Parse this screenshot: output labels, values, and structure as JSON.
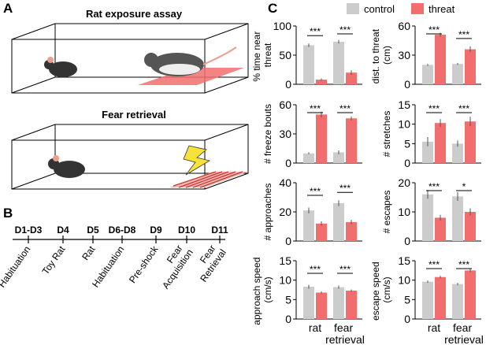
{
  "panel_a": {
    "label": "A",
    "top_title": "Rat exposure assay",
    "bottom_title": "Fear retrieval"
  },
  "panel_b": {
    "label": "B",
    "days": [
      "D1-D3",
      "D4",
      "D5",
      "D6-D8",
      "D9",
      "D10",
      "D11"
    ],
    "events": [
      "Habituation",
      "Toy Rat",
      "Rat",
      "Habituation",
      "Pre-shock",
      "Fear Acquisition",
      "Fear Retrieval"
    ]
  },
  "panel_c": {
    "label": "C",
    "legend": [
      {
        "name": "control",
        "color": "#cccccc"
      },
      {
        "name": "threat",
        "color": "#f26d6d"
      }
    ]
  },
  "chart_data": [
    {
      "type": "bar",
      "ylabel": "% time near threat",
      "ylim": [
        0,
        100
      ],
      "yticks": [
        0,
        50,
        100
      ],
      "series": [
        {
          "values": [
            67,
            73
          ],
          "errors": [
            3,
            3
          ]
        },
        {
          "values": [
            8,
            20
          ],
          "errors": [
            2,
            4
          ]
        }
      ],
      "significance": [
        "***",
        "***"
      ]
    },
    {
      "type": "bar",
      "ylabel": "dist. to threat (cm)",
      "ylim": [
        0,
        60
      ],
      "yticks": [
        0,
        30,
        60
      ],
      "series": [
        {
          "values": [
            20,
            21
          ],
          "errors": [
            1,
            1
          ]
        },
        {
          "values": [
            51,
            36
          ],
          "errors": [
            2,
            3
          ]
        }
      ],
      "significance": [
        "***",
        "***"
      ]
    },
    {
      "type": "bar",
      "ylabel": "# freeze bouts",
      "ylim": [
        0,
        60
      ],
      "yticks": [
        0,
        30,
        60
      ],
      "series": [
        {
          "values": [
            10,
            11
          ],
          "errors": [
            1,
            2
          ]
        },
        {
          "values": [
            50,
            46
          ],
          "errors": [
            3,
            2
          ]
        }
      ],
      "significance": [
        "***",
        "***"
      ]
    },
    {
      "type": "bar",
      "ylabel": "# stretches",
      "ylim": [
        0,
        15
      ],
      "yticks": [
        0,
        5,
        10,
        15
      ],
      "series": [
        {
          "values": [
            5.5,
            5
          ],
          "errors": [
            1.2,
            0.8
          ]
        },
        {
          "values": [
            10.3,
            10.7
          ],
          "errors": [
            1,
            1.2
          ]
        }
      ],
      "significance": [
        "***",
        "***"
      ]
    },
    {
      "type": "bar",
      "ylabel": "# approaches",
      "ylim": [
        0,
        40
      ],
      "yticks": [
        0,
        20,
        40
      ],
      "series": [
        {
          "values": [
            21,
            26
          ],
          "errors": [
            2,
            2
          ]
        },
        {
          "values": [
            12,
            13
          ],
          "errors": [
            1.5,
            1.5
          ]
        }
      ],
      "significance": [
        "***",
        "***"
      ]
    },
    {
      "type": "bar",
      "ylabel": "# escapes",
      "ylim": [
        0,
        20
      ],
      "yticks": [
        0,
        10,
        20
      ],
      "series": [
        {
          "values": [
            16,
            15.3
          ],
          "errors": [
            1.5,
            1.5
          ]
        },
        {
          "values": [
            8,
            10
          ],
          "errors": [
            1,
            1.2
          ]
        }
      ],
      "significance": [
        "***",
        "*"
      ]
    },
    {
      "type": "bar",
      "ylabel": "approach speed (cm/s)",
      "ylim": [
        0,
        15
      ],
      "yticks": [
        0,
        5,
        10,
        15
      ],
      "categories": [
        "rat",
        "fear retrieval"
      ],
      "series": [
        {
          "values": [
            8.3,
            8.2
          ],
          "errors": [
            0.5,
            0.4
          ]
        },
        {
          "values": [
            6.8,
            7.3
          ],
          "errors": [
            0.3,
            0.3
          ]
        }
      ],
      "significance": [
        "***",
        "***"
      ]
    },
    {
      "type": "bar",
      "ylabel": "escape speed (cm/s)",
      "ylim": [
        0,
        15
      ],
      "yticks": [
        0,
        5,
        10,
        15
      ],
      "categories": [
        "rat",
        "fear retrieval"
      ],
      "series": [
        {
          "values": [
            9.6,
            9
          ],
          "errors": [
            0.3,
            0.3
          ]
        },
        {
          "values": [
            10.8,
            12.5
          ],
          "errors": [
            0.3,
            0.5
          ]
        }
      ],
      "significance": [
        "***",
        "***"
      ]
    }
  ]
}
